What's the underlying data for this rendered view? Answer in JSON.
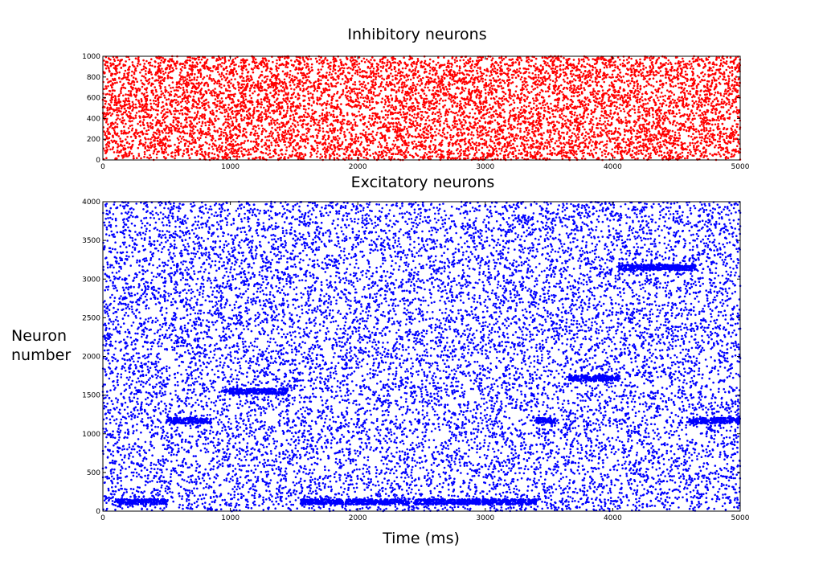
{
  "figure": {
    "ylabel": [
      "Neuron",
      "number"
    ],
    "xlabel": "Time (ms)"
  },
  "chart_data": [
    {
      "type": "scatter",
      "title": "Inhibitory neurons",
      "xlim": [
        0,
        5000
      ],
      "ylim": [
        0,
        1000
      ],
      "xticks": [
        0,
        1000,
        2000,
        3000,
        4000,
        5000
      ],
      "yticks": [
        0,
        200,
        400,
        600,
        800,
        1000
      ],
      "grid": false,
      "color": "#ff0000",
      "density": "uniform random spikes across all neurons and times",
      "bands": []
    },
    {
      "type": "scatter",
      "title": "Excitatory neurons",
      "xlabel": "Time (ms)",
      "ylabel": "Neuron number",
      "xlim": [
        0,
        5000
      ],
      "ylim": [
        0,
        4000
      ],
      "xticks": [
        0,
        1000,
        2000,
        3000,
        4000,
        5000
      ],
      "yticks": [
        0,
        500,
        1000,
        1500,
        2000,
        2500,
        3000,
        3500,
        4000
      ],
      "grid": false,
      "color": "#0000ff",
      "density": "random background spikes with dense synchronous bands",
      "bands": [
        {
          "t_start": 100,
          "t_end": 500,
          "neuron": 120
        },
        {
          "t_start": 500,
          "t_end": 850,
          "neuron": 1170
        },
        {
          "t_start": 950,
          "t_end": 1450,
          "neuron": 1550
        },
        {
          "t_start": 1550,
          "t_end": 2400,
          "neuron": 120
        },
        {
          "t_start": 2450,
          "t_end": 3400,
          "neuron": 120
        },
        {
          "t_start": 3400,
          "t_end": 3550,
          "neuron": 1170
        },
        {
          "t_start": 3650,
          "t_end": 4050,
          "neuron": 1720
        },
        {
          "t_start": 4050,
          "t_end": 4650,
          "neuron": 3150
        },
        {
          "t_start": 4600,
          "t_end": 5000,
          "neuron": 1170
        }
      ]
    }
  ]
}
